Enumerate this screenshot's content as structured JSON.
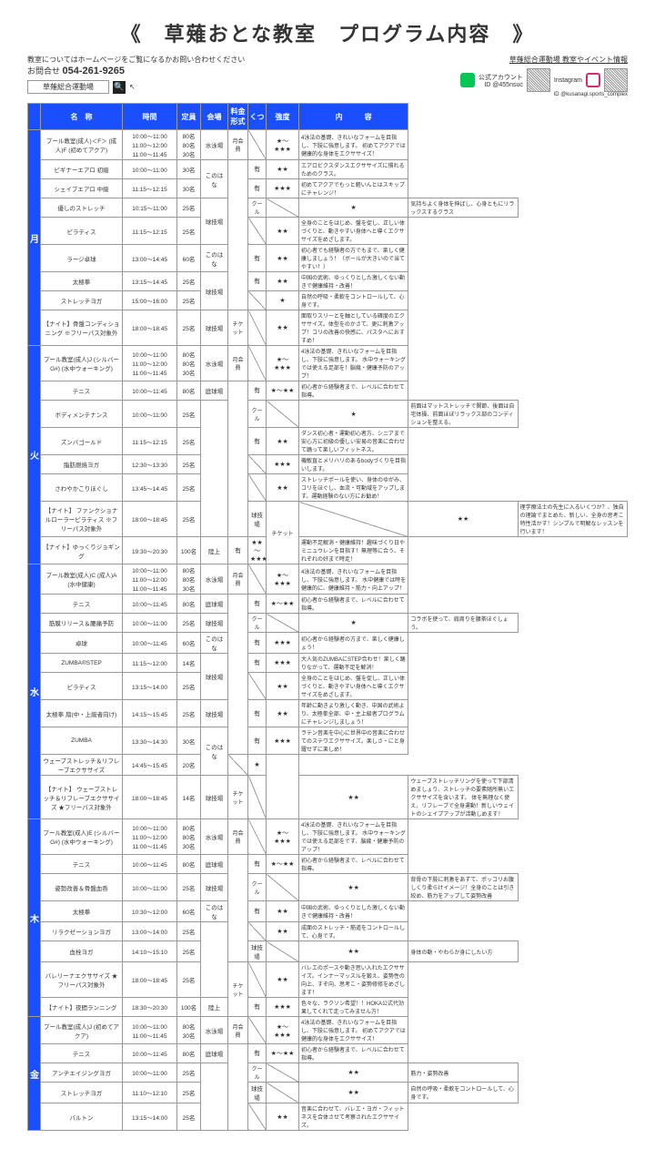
{
  "title": "《　草薙おとな教室　プログラム内容　》",
  "note": "教室についてはホームページをご覧になるかお問い合わせください",
  "contactLabel": "お問合せ",
  "phone": "054-261-9265",
  "searchText": "草薙総合運動場",
  "rightHeader": "草薙総合運動場 教室やイベント情報",
  "lineLabel": "公式アカウント",
  "lineId": "ID @455nsuc",
  "instaLabel": "Instagram",
  "instaId": "ID @kusanagi.sports_complex",
  "headers": [
    "名　称",
    "時間",
    "定員",
    "会場",
    "料金形式",
    "くつ",
    "強度",
    "内　　　容"
  ],
  "days": [
    {
      "label": "月",
      "rows": [
        {
          "program": "プール教室(成人)＜F＞\n(成人)F\n(初めてアクア)",
          "time": "10:00～11:00\n11:00～12:00\n11:00～11:45",
          "cap": "80名\n80名\n30名",
          "venue": "水泳場",
          "fee": "月会費",
          "shoe_diag": true,
          "intens": "★～★★★",
          "desc": "4泳法の基礎、きれいなフォームを目指し、下肢に強意します。\n初めてアクアでは健康的な身体をエクササイズ！"
        },
        {
          "program": "ビギナーエアロ 初級",
          "time": "10:00～11:00",
          "cap": "30名",
          "venue": "このはな",
          "venue_rowspan": 2,
          "fee": "",
          "fee_rowspan": 7,
          "shoe": "有",
          "intens": "★★",
          "desc": "エアロビクスダンスエクササイズに慣れるためのクラス。"
        },
        {
          "program": "シェイプエアロ 中級",
          "time": "11:15～12:15",
          "cap": "30名",
          "shoe": "有",
          "intens": "★★★",
          "desc": "初めてアクアでもっと軽いんとはスキップにチャレンジ！"
        },
        {
          "program": "優しのストレッチ",
          "time": "10:15～11:00",
          "cap": "25名",
          "venue": "球技場",
          "venue_rowspan": 2,
          "fee": "クール",
          "shoe_diag": true,
          "intens": "★",
          "desc": "気持ちよく身体を伸ばし、心身ともにリラックスするクラス"
        },
        {
          "program": "ピラティス",
          "time": "11:15～12:15",
          "cap": "25名",
          "shoe_diag": true,
          "intens": "★★",
          "desc": "全身のことをはじめ、盤を促し、正しい体づくりと、動きやすい身体へと導くエクササイズをめざします。"
        },
        {
          "program": "ラージ卓球",
          "time": "13:00～14:45",
          "cap": "60名",
          "venue": "このはな",
          "shoe": "有",
          "intens": "★★",
          "desc": "初心者でも経験者の方でもまで、楽しく健康しましょう！（ボールが大きいので当てやすい！）"
        },
        {
          "program": "太極拳",
          "time": "13:15～14:45",
          "cap": "25名",
          "venue": "球技場",
          "venue_rowspan": 2,
          "shoe": "有",
          "intens": "★★",
          "desc": "中国の武術、ゆっくりとした激しくない動きで健康維持・改善！"
        },
        {
          "program": "ストレッチヨガ",
          "time": "15:00～16:00",
          "cap": "25名",
          "shoe_diag": true,
          "intens": "★",
          "desc": "自然の呼吸・柔軟をコントロールして、心身です。"
        },
        {
          "program": "【ナイト】骨盤コンディショニング\n※フリーパス対象外",
          "time": "18:00～18:45",
          "cap": "25名",
          "venue": "球技場",
          "fee": "チケット",
          "shoe_diag": true,
          "intens": "★★",
          "desc": "面取りスリーとを軸としている確度のエクササイズ。体型をのかさて、更に刺激アップ！コリの改善の快感に、パスタへにおすすめ！"
        }
      ]
    },
    {
      "label": "火",
      "rows": [
        {
          "program": "プール教室(成人)J\n(シルバーG#)\n(水中ウォーキング)",
          "time": "10:00～11:00\n11:00～12:00\n11:00～11:45",
          "cap": "80名\n80名\n30名",
          "venue": "水泳場",
          "fee": "月会費",
          "shoe_diag": true,
          "intens": "★～★★★",
          "desc": "4泳法の基礎、きれいなフォームを目指し、下肢に強意します。\n水中ウォーキングでは使える足部を！脳幾・健康予防のアップ！"
        },
        {
          "program": "テニス",
          "time": "10:00～11:45",
          "cap": "80名",
          "venue": "庭球場",
          "fee": "",
          "fee_rowspan": 6,
          "shoe": "有",
          "intens": "★～★★",
          "desc": "初心者から経験者まで、レベルに合わせて指導。"
        },
        {
          "program": "ボディメンテナンス",
          "time": "10:00～11:00",
          "cap": "25名",
          "venue": "",
          "venue_rowspan": 5,
          "fee": "クール",
          "shoe_diag": true,
          "intens": "★",
          "desc": "前面はマットストレッチで関節、後面は自宅体操、前面ほぼリラックス部のコンディションを整える。"
        },
        {
          "program": "ズンバゴールド",
          "time": "11:15～12:15",
          "cap": "25名",
          "shoe": "有",
          "intens": "★★",
          "desc": "ダンス初心者・運動初心者方、シニアまで安心方に初級の優しい安易の音楽に合わせて踊って楽しいフィットネス。"
        },
        {
          "program": "脂肪燃焼ヨガ",
          "time": "12:30～13:30",
          "cap": "25名",
          "shoe_diag": true,
          "intens": "★★★",
          "desc": "機敏直とメリハリのあるbodyづくりを目指いします。"
        },
        {
          "program": "さわやかこりほぐし",
          "time": "13:45～14:45",
          "cap": "25名",
          "shoe_diag": true,
          "intens": "★★",
          "desc": "ストレッチポールを使い、身体のゆがみ、コリをほぐし、血流・可動域をアップします。運動経験のない方にお勧め！"
        },
        {
          "program": "【ナイト】\nファンクショナルローラーピラティス\n※フリーパス対象外",
          "time": "18:00～18:45",
          "cap": "25名",
          "venue": "球技場",
          "fee": "チケット",
          "fee_rowspan": 2,
          "shoe_diag": true,
          "intens": "★★",
          "desc": "理学療法士の先生に入るいくつか？、独自の理論でまとめた、新しい、全身の思考こ\n特性活かす！シンプルで明解なレッスンを行います！"
        },
        {
          "program": "【ナイト】ゆっくりジョギング",
          "time": "19:30～20:30",
          "cap": "100名",
          "venue": "陸上",
          "shoe": "有",
          "intens": "★★～★★★",
          "desc": "運動不足解消・健康維持！趣味づくり日やミニュウレンを目指す！無理等に合う、それぞれの好まで時走！"
        }
      ]
    },
    {
      "label": "水",
      "rows": [
        {
          "program": "プール教室(成人)C\n(成人)A\n(水中健康)",
          "time": "10:00～11:00\n11:00～12:00\n11:00～11:45",
          "cap": "80名\n80名\n30名",
          "venue": "水泳場",
          "fee": "月会費",
          "shoe_diag": true,
          "intens": "★～★★★",
          "desc": "4泳法の基礎、きれいなフォームを目指し、下肢に強意します。\n水中健康では時を健康的に、健康維持・筋力・向上アップ！"
        },
        {
          "program": "テニス",
          "time": "10:00～11:45",
          "cap": "80名",
          "venue": "庭球場",
          "fee": "",
          "fee_rowspan": 7,
          "shoe": "有",
          "intens": "★～★★",
          "desc": "初心者から経験者まで、レベルに合わせて指導。"
        },
        {
          "program": "筋膜リリース＆腰痛予防",
          "time": "10:00～11:00",
          "cap": "25名",
          "venue": "球技場",
          "fee": "クール",
          "shoe_diag": true,
          "intens": "★",
          "desc": "コラボを使って、肩周りを腰茶ほぐしょう。"
        },
        {
          "program": "卓球",
          "time": "10:00～11:45",
          "cap": "60名",
          "venue": "このはな",
          "shoe": "有",
          "intens": "★★★",
          "desc": "初心者から経験者の方まで、楽しく健康しょう！"
        },
        {
          "program": "ZUMBA®STEP",
          "time": "11:15～12:00",
          "cap": "14名",
          "venue": "球技場",
          "venue_rowspan": 2,
          "shoe": "有",
          "intens": "★★★",
          "desc": "大人気のZUMBAにSTEP合わせ！楽しく踊りながって、運動不足を解消！"
        },
        {
          "program": "ピラティス",
          "time": "13:15～14:00",
          "cap": "25名",
          "shoe_diag": true,
          "intens": "★★",
          "desc": "全身のことをはじめ、盤を促し、正しい体づくりと、動きやすい身体へと導くエクササイズをめざします。"
        },
        {
          "program": "太極拳 扇(中・上級者向け)",
          "time": "14:15～15:45",
          "cap": "25名",
          "venue": "球技場",
          "shoe": "有",
          "intens": "★★",
          "desc": "年齢に動きより激しく動き、中国の武術より、太極拳全部、中・主上級者プログラムにチャレンジしましょう！"
        },
        {
          "program": "ZUMBA",
          "time": "13:30～14:30",
          "cap": "30名",
          "venue": "このはな",
          "venue_rowspan": 2,
          "shoe": "有",
          "intens": "★★★",
          "desc": "ラテン音楽を中心に世界中の音楽に合わせてのステワエクササイズ。楽しさ・にと身躍せずに楽しめ！"
        },
        {
          "program": "ウェーブストレッチ＆リフレーブエクササイズ",
          "time": "14:45～15:45",
          "cap": "20名",
          "shoe_diag": true,
          "intens": "★",
          "desc": "",
          "desc_rowspan": 2
        },
        {
          "program": "【ナイト】\nウェーブストレッチ＆リフレーブエクササイズ\n★フリーパス対象外",
          "time": "18:00～18:45",
          "cap": "14名",
          "venue": "球技場",
          "fee": "チケット",
          "shoe_diag": true,
          "intens": "★★",
          "desc": "ウェーブストレッチリングを使って下部清めましょり、ストレッチの要素随所無いエクササイズを含います。\n体を無理なく使え、リフレーブで全身運動！新しいウェイトのシェイプアップが活動しめます！"
        }
      ]
    },
    {
      "label": "木",
      "rows": [
        {
          "program": "プール教室(成人)E\n(シルバーG#)\n(水中ウォーキング)",
          "time": "10:00～11:00\n11:00～12:00\n11:00～11:45",
          "cap": "80名\n80名\n30名",
          "venue": "水泳場",
          "fee": "月会費",
          "shoe_diag": true,
          "intens": "★～★★★",
          "desc": "4泳法の基礎、きれいなフォームを目指し、下肢に強意します。\n水中ウォーキングでは使える足部をです、脳幾・健康予防のアップ！"
        },
        {
          "program": "テニス",
          "time": "10:00～11:45",
          "cap": "80名",
          "venue": "庭球場",
          "fee": "",
          "fee_rowspan": 5,
          "shoe": "有",
          "intens": "★～★★",
          "desc": "初心者から経験者まで、レベルに合わせて指導。"
        },
        {
          "program": "姿勢改善＆骨盤血呑",
          "time": "10:00～11:00",
          "cap": "25名",
          "venue": "球技場",
          "fee": "クール",
          "shoe_diag": true,
          "intens": "★★",
          "desc": "背骨の下肢に刺激をあずて、ポッコリお腹しくり柔らけイメージ！全身のことは引き絞め、筋力をアップして姿勢改善"
        },
        {
          "program": "太極拳",
          "time": "10:30～12:00",
          "cap": "60名",
          "venue": "このはな",
          "shoe": "有",
          "intens": "★★",
          "desc": "中国の武術、ゆっくりとした激しくない動きで健康維持・改善！"
        },
        {
          "program": "リラクゼーションヨガ",
          "time": "13:00～14:00",
          "cap": "25名",
          "venue": "",
          "venue_rowspan": 3,
          "shoe_diag": true,
          "intens": "★★",
          "desc": "成面のストレッチ・筋道をコントロールして、心身です。"
        },
        {
          "program": "血栓ヨガ",
          "time": "14:10～15:10",
          "cap": "25名",
          "venue": "球技場",
          "shoe_diag": true,
          "intens": "★★",
          "desc": "身体の動・やわらか身にしたい方"
        },
        {
          "program": "バレリーナエクササイズ\n★フリーパス対象外",
          "time": "18:00～18:45",
          "cap": "25名",
          "venue": "",
          "fee": "チケット",
          "fee_rowspan": 2,
          "shoe_diag": true,
          "intens": "★★",
          "desc": "バレエのポースや動き思い入れたエクササイズ。インナーマッスルを鍛え、姿勢性の向上、すぞ向、思考こ・姿勢修修をめざします！"
        },
        {
          "program": "【ナイト】夜間ランニング",
          "time": "18:30～20:30",
          "cap": "100名",
          "venue": "陸上",
          "shoe": "有",
          "intens": "★★★",
          "desc": "色々な、ラクソン希望！！HOKA公式代効果してくれて走ってみません方！"
        }
      ]
    },
    {
      "label": "金",
      "rows": [
        {
          "program": "プール教室(成人)J\n(初めてアクア)",
          "time": "10:00～11:00\n11:00～11:45",
          "cap": "80名\n30名",
          "venue": "水泳場",
          "fee": "月会費",
          "shoe_diag": true,
          "intens": "★～★★★",
          "desc": "4泳法の基礎、きれいなフォームを目指し、下肢に強意します。\n初めてアクアでは健康的な身体をエクササイズ！"
        },
        {
          "program": "テニス",
          "time": "10:00～11:45",
          "cap": "80名",
          "venue": "庭球場",
          "fee": "",
          "fee_rowspan": 4,
          "shoe": "有",
          "intens": "★～★★",
          "desc": "初心者から経験者まで、レベルに合わせて指導。"
        },
        {
          "program": "アンチエイジングヨガ",
          "time": "10:00～11:00",
          "cap": "25名",
          "venue": "",
          "venue_rowspan": 3,
          "fee": "クール",
          "shoe_diag": true,
          "intens": "★★",
          "desc": "筋力・姿勢改善"
        },
        {
          "program": "ストレッチヨガ",
          "time": "11:10～12:10",
          "cap": "25名",
          "venue": "球技場",
          "shoe_diag": true,
          "intens": "★★",
          "desc": "自然の呼吸・柔軟をコントロールして、心身です。"
        },
        {
          "program": "バルトン",
          "time": "13:15～14:00",
          "cap": "25名",
          "shoe_diag": true,
          "intens": "★★",
          "desc": "音楽に合わせて、バレエ・ヨガ・フィットネスを合体させて考察されたエクササイズ。"
        }
      ]
    }
  ]
}
